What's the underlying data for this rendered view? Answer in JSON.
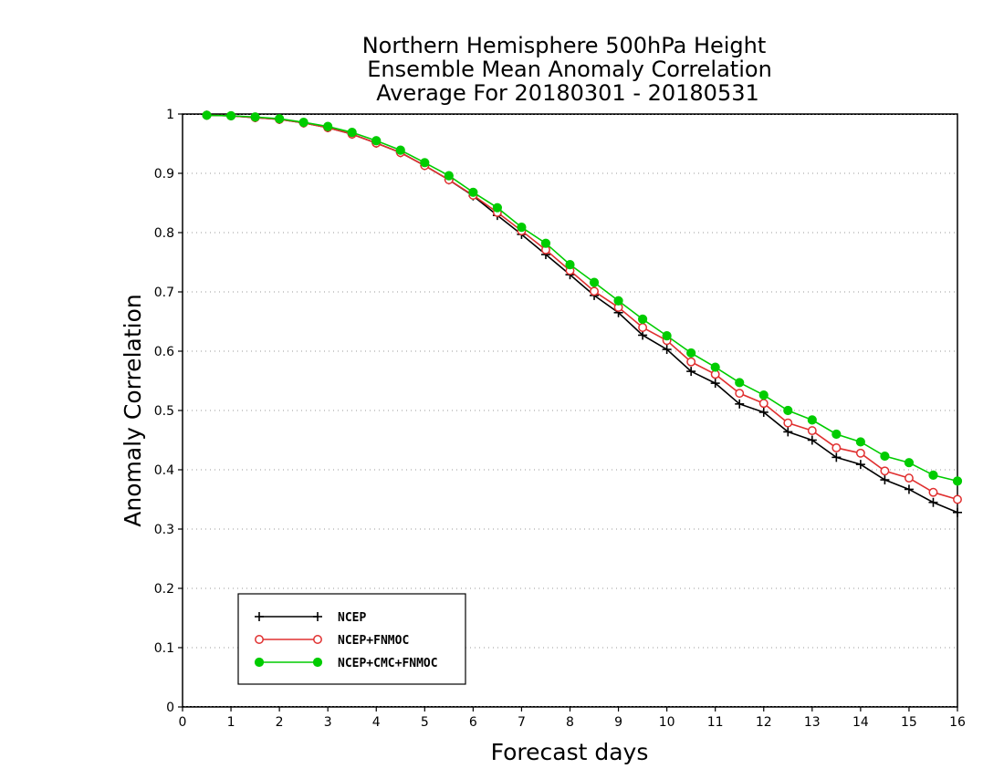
{
  "chart_data": {
    "type": "line",
    "title_lines": [
      "Northern Hemisphere 500hPa Height",
      "Ensemble Mean Anomaly Correlation",
      "Average For 20180301 - 20180531"
    ],
    "xlabel": "Forecast days",
    "ylabel": "Anomaly Correlation",
    "xlim": [
      0,
      16
    ],
    "ylim": [
      0,
      1
    ],
    "x_ticks": [
      "0",
      "1",
      "2",
      "3",
      "4",
      "5",
      "6",
      "7",
      "8",
      "9",
      "10",
      "11",
      "12",
      "13",
      "14",
      "15",
      "16"
    ],
    "y_ticks": [
      "0",
      "0.1",
      "0.2",
      "0.3",
      "0.4",
      "0.5",
      "0.6",
      "0.7",
      "0.8",
      "0.9",
      "1"
    ],
    "grid": "horizontal dotted",
    "legend_position": "bottom-left",
    "x": [
      0.5,
      1,
      1.5,
      2,
      2.5,
      3,
      3.5,
      4,
      4.5,
      5,
      5.5,
      6,
      6.5,
      7,
      7.5,
      8,
      8.5,
      9,
      9.5,
      10,
      10.5,
      11,
      11.5,
      12,
      12.5,
      13,
      13.5,
      14,
      14.5,
      15,
      15.5,
      16
    ],
    "series": [
      {
        "name": "NCEP",
        "color": "#000000",
        "marker": "plus",
        "values": [
          0.998,
          0.997,
          0.994,
          0.991,
          0.985,
          0.977,
          0.966,
          0.951,
          0.935,
          0.913,
          0.889,
          0.862,
          0.829,
          0.797,
          0.763,
          0.729,
          0.694,
          0.665,
          0.627,
          0.603,
          0.566,
          0.546,
          0.511,
          0.497,
          0.464,
          0.45,
          0.421,
          0.409,
          0.383,
          0.367,
          0.345,
          0.328
        ]
      },
      {
        "name": "NCEP+FNMOC",
        "color": "#e03030",
        "marker": "open-circle",
        "values": [
          0.998,
          0.997,
          0.994,
          0.991,
          0.985,
          0.977,
          0.966,
          0.951,
          0.935,
          0.913,
          0.889,
          0.863,
          0.834,
          0.803,
          0.771,
          0.736,
          0.701,
          0.674,
          0.64,
          0.618,
          0.582,
          0.561,
          0.529,
          0.512,
          0.479,
          0.466,
          0.437,
          0.428,
          0.398,
          0.386,
          0.362,
          0.35
        ]
      },
      {
        "name": "NCEP+CMC+FNMOC",
        "color": "#00cc00",
        "marker": "filled-circle",
        "values": [
          0.998,
          0.997,
          0.995,
          0.992,
          0.986,
          0.979,
          0.969,
          0.955,
          0.939,
          0.918,
          0.896,
          0.868,
          0.842,
          0.809,
          0.782,
          0.746,
          0.716,
          0.685,
          0.654,
          0.626,
          0.597,
          0.573,
          0.547,
          0.526,
          0.5,
          0.484,
          0.46,
          0.447,
          0.423,
          0.412,
          0.391,
          0.381
        ]
      }
    ]
  }
}
